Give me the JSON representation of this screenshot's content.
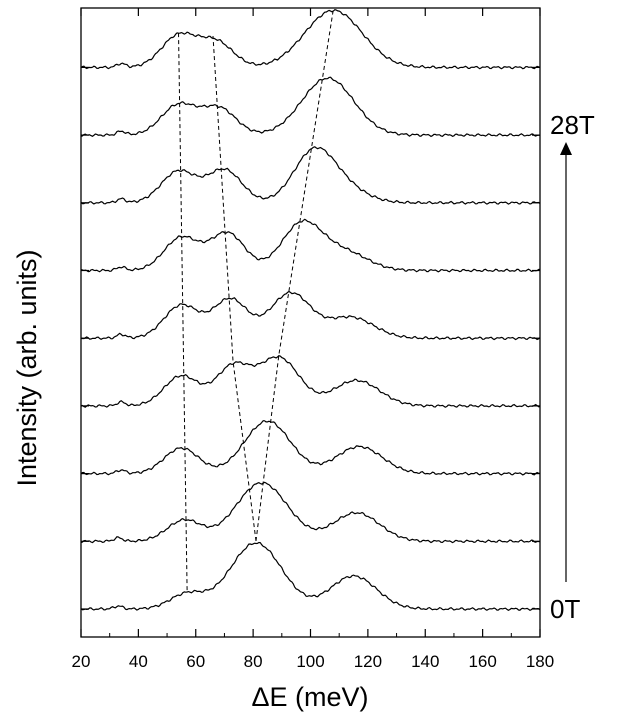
{
  "chart_data": {
    "type": "line",
    "title": "",
    "xlabel": "ΔE (meV)",
    "ylabel": "Intensity (arb. units)",
    "xlim": [
      20,
      180
    ],
    "xticks": [
      20,
      40,
      60,
      80,
      100,
      120,
      140,
      160,
      180
    ],
    "y_ticklabels_shown": false,
    "grid": false,
    "field_labels": {
      "top": "28T",
      "bottom": "0T"
    },
    "field_arrow": "up",
    "offset_step": 1,
    "series": [
      {
        "peaks": [
          [
            33,
            0.1,
            1.5
          ],
          [
            57,
            0.5,
            6
          ],
          [
            81,
            2.2,
            9
          ],
          [
            115,
            1.1,
            8
          ]
        ]
      },
      {
        "peaks": [
          [
            33,
            0.12,
            1.5
          ],
          [
            56,
            0.7,
            6
          ],
          [
            83,
            1.95,
            9
          ],
          [
            116,
            0.95,
            8
          ]
        ]
      },
      {
        "peaks": [
          [
            34,
            0.12,
            1.5
          ],
          [
            55,
            0.85,
            6
          ],
          [
            85,
            1.75,
            8
          ],
          [
            117,
            0.9,
            8
          ]
        ]
      },
      {
        "peaks": [
          [
            34,
            0.13,
            1.5
          ],
          [
            55,
            1.0,
            6
          ],
          [
            73,
            1.3,
            6
          ],
          [
            89,
            1.6,
            7
          ],
          [
            116,
            0.85,
            8
          ]
        ]
      },
      {
        "peaks": [
          [
            34,
            0.13,
            1.5
          ],
          [
            55,
            1.1,
            6
          ],
          [
            72,
            1.3,
            6
          ],
          [
            93,
            1.5,
            7
          ],
          [
            114,
            0.7,
            8
          ]
        ]
      },
      {
        "peaks": [
          [
            34,
            0.12,
            1.5
          ],
          [
            55,
            1.1,
            6
          ],
          [
            71,
            1.25,
            6
          ],
          [
            97,
            1.55,
            7
          ],
          [
            112,
            0.6,
            8
          ]
        ]
      },
      {
        "peaks": [
          [
            34,
            0.13,
            1.5
          ],
          [
            54,
            1.05,
            6
          ],
          [
            70,
            1.1,
            6
          ],
          [
            101,
            1.6,
            7
          ],
          [
            111,
            0.5,
            8
          ]
        ]
      },
      {
        "peaks": [
          [
            34,
            0.13,
            1.5
          ],
          [
            54,
            1.0,
            6
          ],
          [
            68,
            0.9,
            6
          ],
          [
            106,
            1.9,
            9
          ]
        ]
      },
      {
        "peaks": [
          [
            34,
            0.13,
            1.5
          ],
          [
            54,
            1.05,
            6
          ],
          [
            67,
            0.85,
            6
          ],
          [
            108,
            1.9,
            10
          ]
        ]
      }
    ],
    "guide_lines": [
      {
        "points": [
          [
            57,
            0
          ],
          [
            54,
            8
          ]
        ]
      },
      {
        "points": [
          [
            81,
            0
          ],
          [
            73,
            3
          ],
          [
            66,
            8
          ]
        ]
      },
      {
        "points": [
          [
            81,
            0
          ],
          [
            89,
            3
          ],
          [
            108,
            8
          ]
        ]
      }
    ]
  }
}
